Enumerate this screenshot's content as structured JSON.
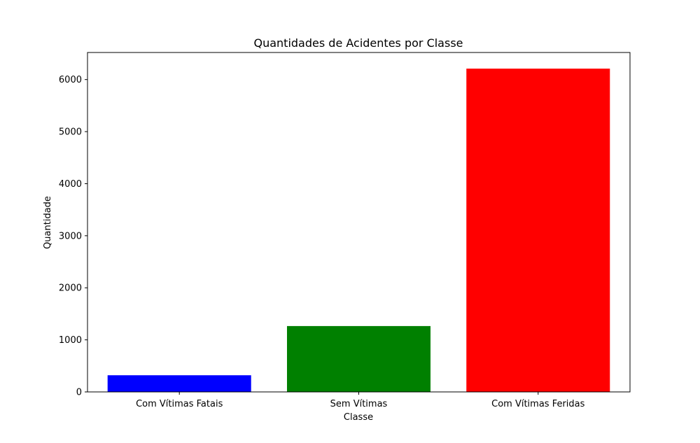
{
  "chart_data": {
    "type": "bar",
    "title": "Quantidades de Acidentes por Classe",
    "xlabel": "Classe",
    "ylabel": "Quantidade",
    "categories": [
      "Com Vítimas Fatais",
      "Sem Vítimas",
      "Com Vítimas Feridas"
    ],
    "values": [
      320,
      1265,
      6210
    ],
    "colors": [
      "#0000ff",
      "#008000",
      "#ff0000"
    ],
    "ylim": [
      0,
      6520
    ],
    "yticks": [
      0,
      1000,
      2000,
      3000,
      4000,
      5000,
      6000
    ],
    "grid": false,
    "legend": "none"
  }
}
